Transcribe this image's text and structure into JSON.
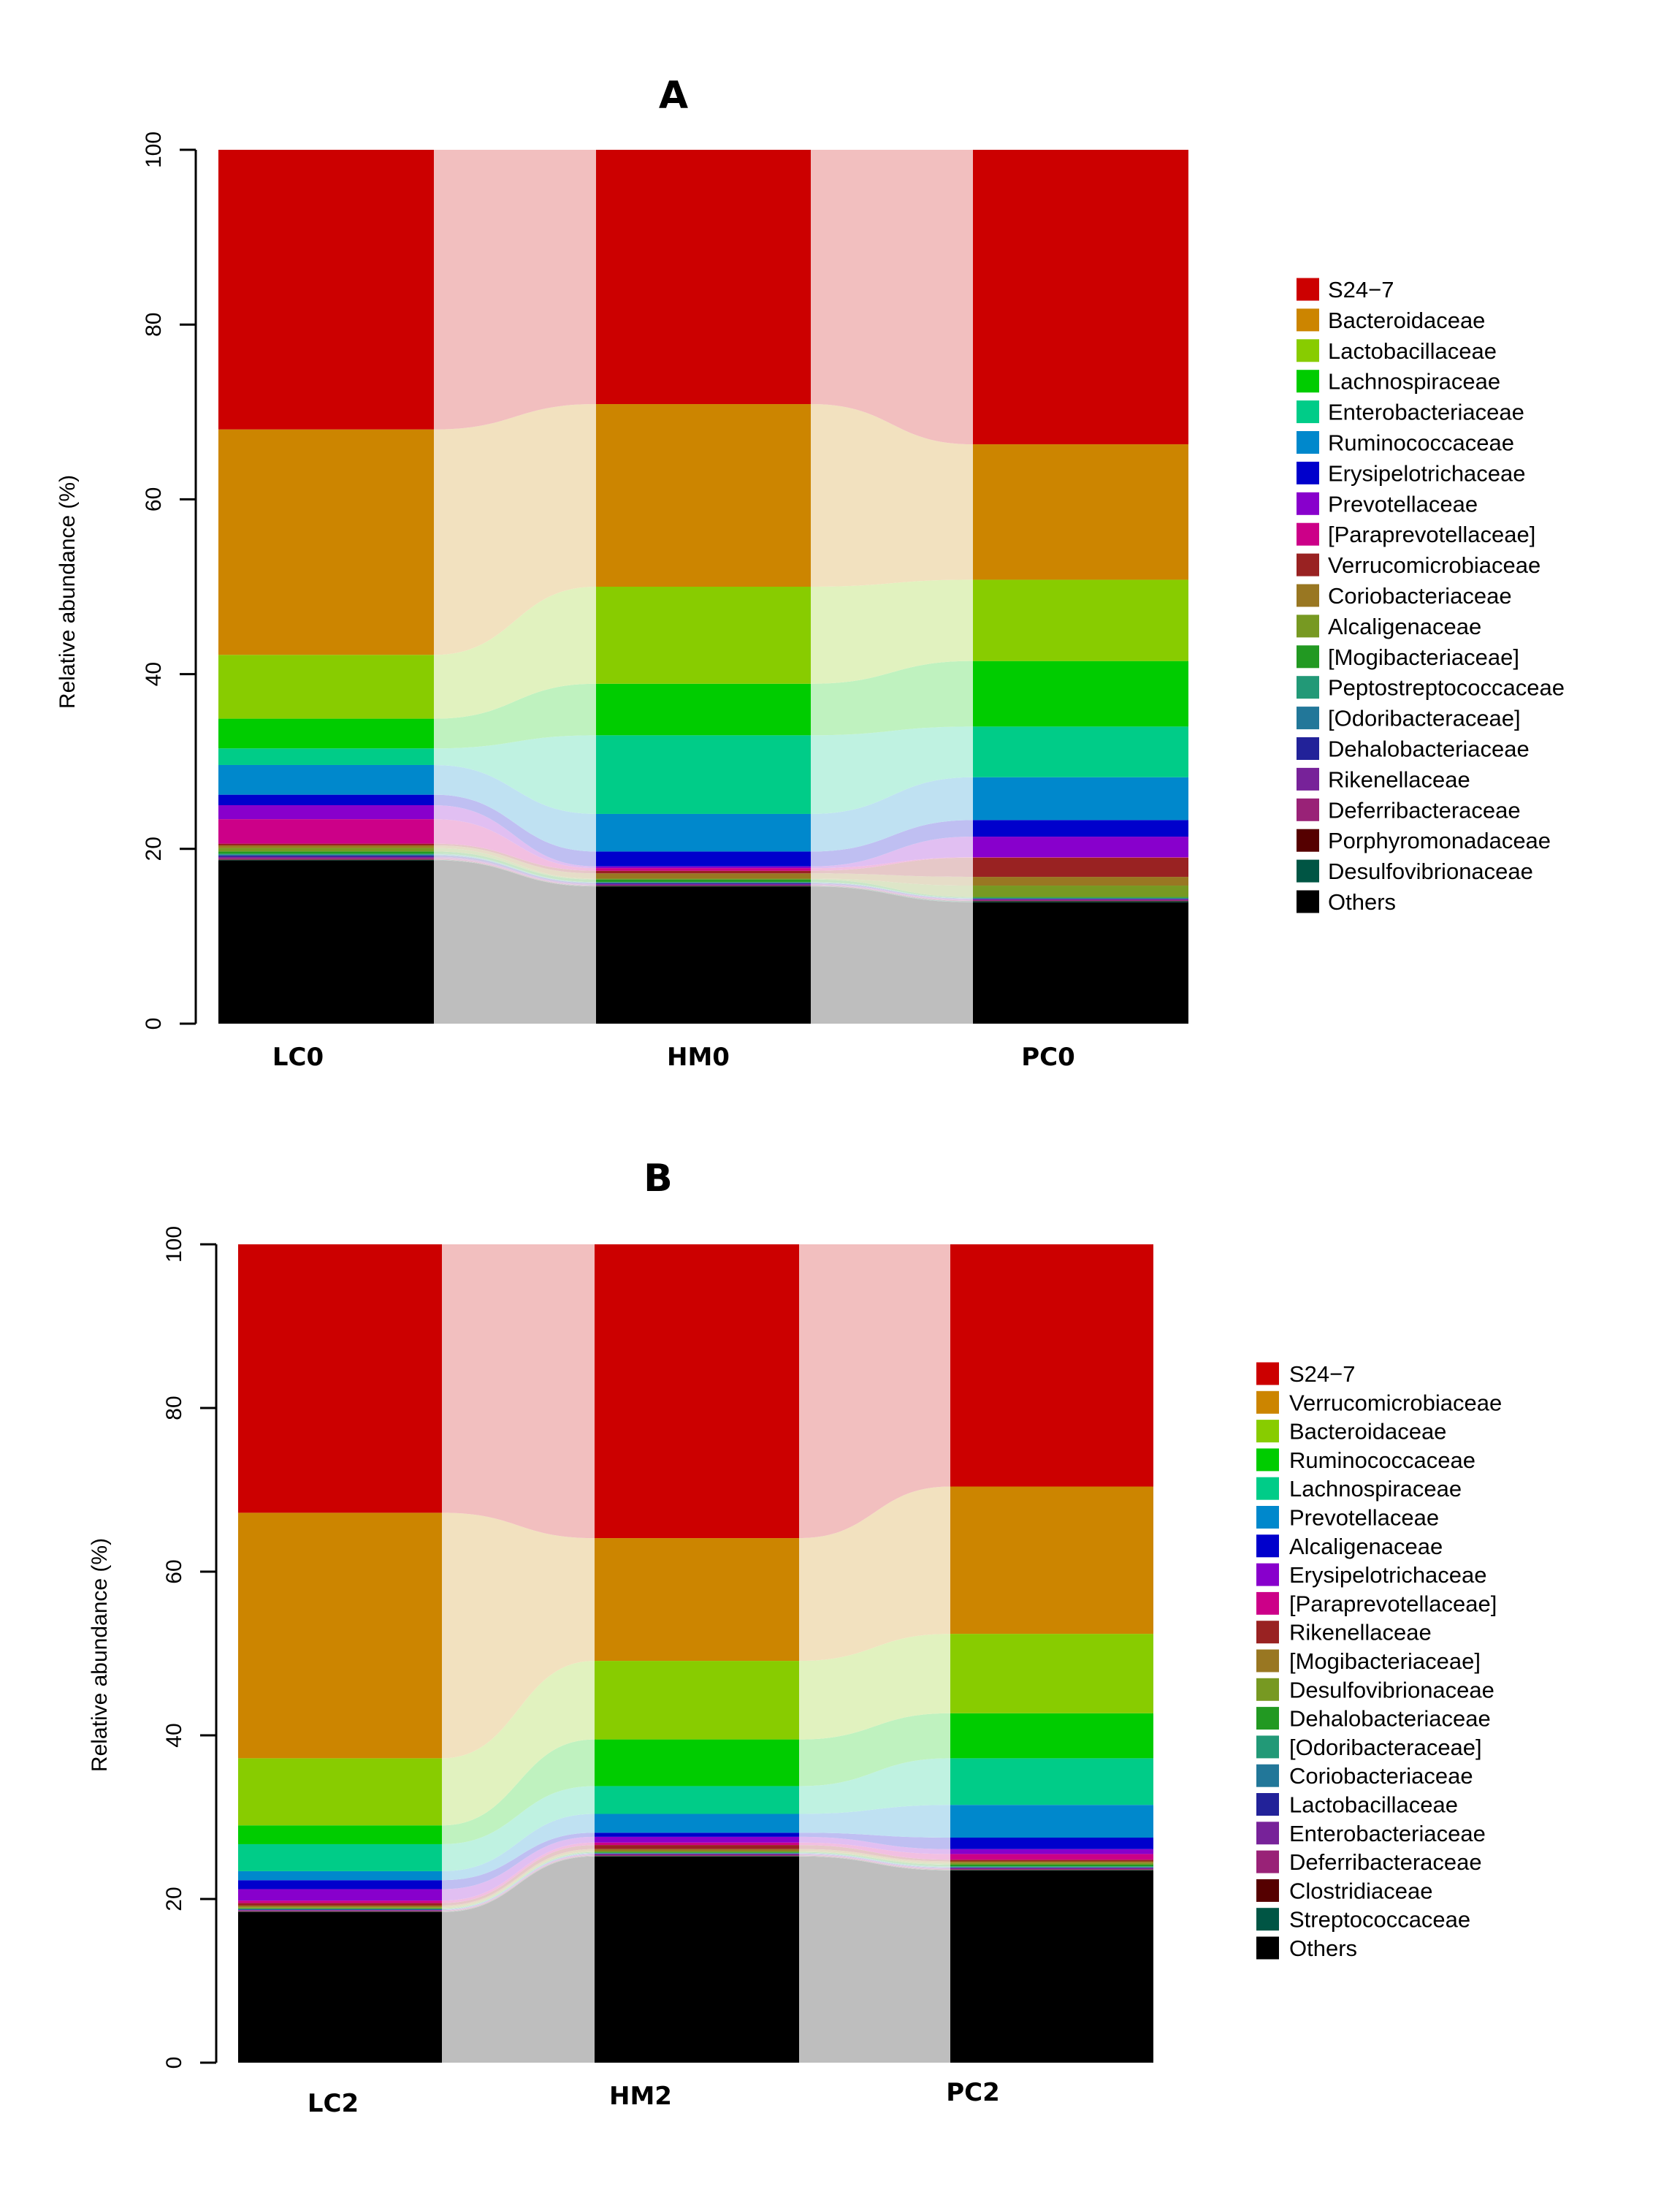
{
  "chart_data": [
    {
      "type": "bar",
      "subtype": "stacked-alluvial",
      "title": "A",
      "xlabel": "",
      "ylabel": "Relative abundance (%)",
      "ylim": [
        0,
        100
      ],
      "yticks": [
        0,
        20,
        40,
        60,
        80,
        100
      ],
      "grid": false,
      "legend_position": "right",
      "categories": [
        "LC0",
        "HM0",
        "PC0"
      ],
      "series": [
        {
          "name": "S24−7",
          "color": "#CC0000",
          "values": [
            32.0,
            29.1,
            33.7
          ]
        },
        {
          "name": "Bacteroidaceae",
          "color": "#CC8500",
          "values": [
            25.8,
            20.9,
            15.5
          ]
        },
        {
          "name": "Lactobacillaceae",
          "color": "#88CC00",
          "values": [
            7.3,
            11.1,
            9.3
          ]
        },
        {
          "name": "Lachnospiraceae",
          "color": "#00CC00",
          "values": [
            3.4,
            5.9,
            7.5
          ]
        },
        {
          "name": "Enterobacteriaceae",
          "color": "#00CC88",
          "values": [
            1.9,
            9.0,
            5.8
          ]
        },
        {
          "name": "Ruminococcaceae",
          "color": "#0088CC",
          "values": [
            3.4,
            4.3,
            4.9
          ]
        },
        {
          "name": "Erysipelotrichaceae",
          "color": "#0000CC",
          "values": [
            1.2,
            1.7,
            1.9
          ]
        },
        {
          "name": "Prevotellaceae",
          "color": "#8800CC",
          "values": [
            1.6,
            0.2,
            2.35
          ]
        },
        {
          "name": "[Paraprevotellaceae]",
          "color": "#CC0088",
          "values": [
            2.8,
            0.3,
            0.05
          ]
        },
        {
          "name": "Verrucomicrobiaceae",
          "color": "#992222",
          "values": [
            0.2,
            0.3,
            2.2
          ]
        },
        {
          "name": "Coriobacteriaceae",
          "color": "#997722",
          "values": [
            0.3,
            0.6,
            1.0
          ]
        },
        {
          "name": "Alcaligenaceae",
          "color": "#779922",
          "values": [
            0.4,
            0.1,
            1.3
          ]
        },
        {
          "name": "[Mogibacteriaceae]",
          "color": "#229922",
          "values": [
            0.25,
            0.3,
            0.1
          ]
        },
        {
          "name": "Peptostreptococcaceae",
          "color": "#229977",
          "values": [
            0.1,
            0.05,
            0.05
          ]
        },
        {
          "name": "[Odoribacteraceae]",
          "color": "#227799",
          "values": [
            0.1,
            0.05,
            0.05
          ]
        },
        {
          "name": "Dehalobacteriaceae",
          "color": "#222299",
          "values": [
            0.15,
            0.1,
            0.05
          ]
        },
        {
          "name": "Rikenellaceae",
          "color": "#772299",
          "values": [
            0.15,
            0.15,
            0.1
          ]
        },
        {
          "name": "Deferribacteraceae",
          "color": "#992277",
          "values": [
            0.15,
            0.05,
            0.1
          ]
        },
        {
          "name": "Porphyromonadaceae",
          "color": "#550000",
          "values": [
            0.05,
            0.05,
            0.05
          ]
        },
        {
          "name": "Desulfovibrionaceae",
          "color": "#005544",
          "values": [
            0.05,
            0.05,
            0.1
          ]
        },
        {
          "name": "Others",
          "color": "#000000",
          "values": [
            18.7,
            15.7,
            13.9
          ]
        }
      ]
    },
    {
      "type": "bar",
      "subtype": "stacked-alluvial",
      "title": "B",
      "xlabel": "",
      "ylabel": "Relative abundance (%)",
      "ylim": [
        0,
        100
      ],
      "yticks": [
        0,
        20,
        40,
        60,
        80,
        100
      ],
      "grid": false,
      "legend_position": "right",
      "categories": [
        "LC2",
        "HM2",
        "PC2"
      ],
      "series": [
        {
          "name": "S24−7",
          "color": "#CC0000",
          "values": [
            32.8,
            35.9,
            29.6
          ]
        },
        {
          "name": "Verrucomicrobiaceae",
          "color": "#CC8500",
          "values": [
            30.0,
            15.0,
            18.0
          ]
        },
        {
          "name": "Bacteroidaceae",
          "color": "#88CC00",
          "values": [
            8.2,
            9.6,
            9.7
          ]
        },
        {
          "name": "Ruminococcaceae",
          "color": "#00CC00",
          "values": [
            2.3,
            5.7,
            5.5
          ]
        },
        {
          "name": "Lachnospiraceae",
          "color": "#00CC88",
          "values": [
            3.3,
            3.4,
            5.7
          ]
        },
        {
          "name": "Prevotellaceae",
          "color": "#0088CC",
          "values": [
            1.1,
            2.3,
            4.0
          ]
        },
        {
          "name": "Alcaligenaceae",
          "color": "#0000CC",
          "values": [
            1.1,
            0.5,
            1.4
          ]
        },
        {
          "name": "Erysipelotrichaceae",
          "color": "#8800CC",
          "values": [
            1.4,
            0.7,
            0.6
          ]
        },
        {
          "name": "[Paraprevotellaceae]",
          "color": "#CC0088",
          "values": [
            0.3,
            0.3,
            0.7
          ]
        },
        {
          "name": "Rikenellaceae",
          "color": "#992222",
          "values": [
            0.3,
            0.5,
            0.2
          ]
        },
        {
          "name": "[Mogibacteriaceae]",
          "color": "#997722",
          "values": [
            0.2,
            0.25,
            0.2
          ]
        },
        {
          "name": "Desulfovibrionaceae",
          "color": "#779922",
          "values": [
            0.15,
            0.1,
            0.2
          ]
        },
        {
          "name": "Dehalobacteriaceae",
          "color": "#229922",
          "values": [
            0.05,
            0.1,
            0.2
          ]
        },
        {
          "name": "[Odoribacteraceae]",
          "color": "#229977",
          "values": [
            0.05,
            0.05,
            0.1
          ]
        },
        {
          "name": "Coriobacteriaceae",
          "color": "#227799",
          "values": [
            0.05,
            0.05,
            0.05
          ]
        },
        {
          "name": "Lactobacillaceae",
          "color": "#222299",
          "values": [
            0.05,
            0.05,
            0.05
          ]
        },
        {
          "name": "Enterobacteriaceae",
          "color": "#772299",
          "values": [
            0.05,
            0.1,
            0.1
          ]
        },
        {
          "name": "Deferribacteraceae",
          "color": "#992277",
          "values": [
            0.1,
            0.1,
            0.1
          ]
        },
        {
          "name": "Clostridiaceae",
          "color": "#550000",
          "values": [
            0.05,
            0.05,
            0.05
          ]
        },
        {
          "name": "Streptococcaceae",
          "color": "#005544",
          "values": [
            0.05,
            0.05,
            0.05
          ]
        },
        {
          "name": "Others",
          "color": "#000000",
          "values": [
            18.4,
            25.2,
            23.5
          ]
        }
      ]
    }
  ]
}
